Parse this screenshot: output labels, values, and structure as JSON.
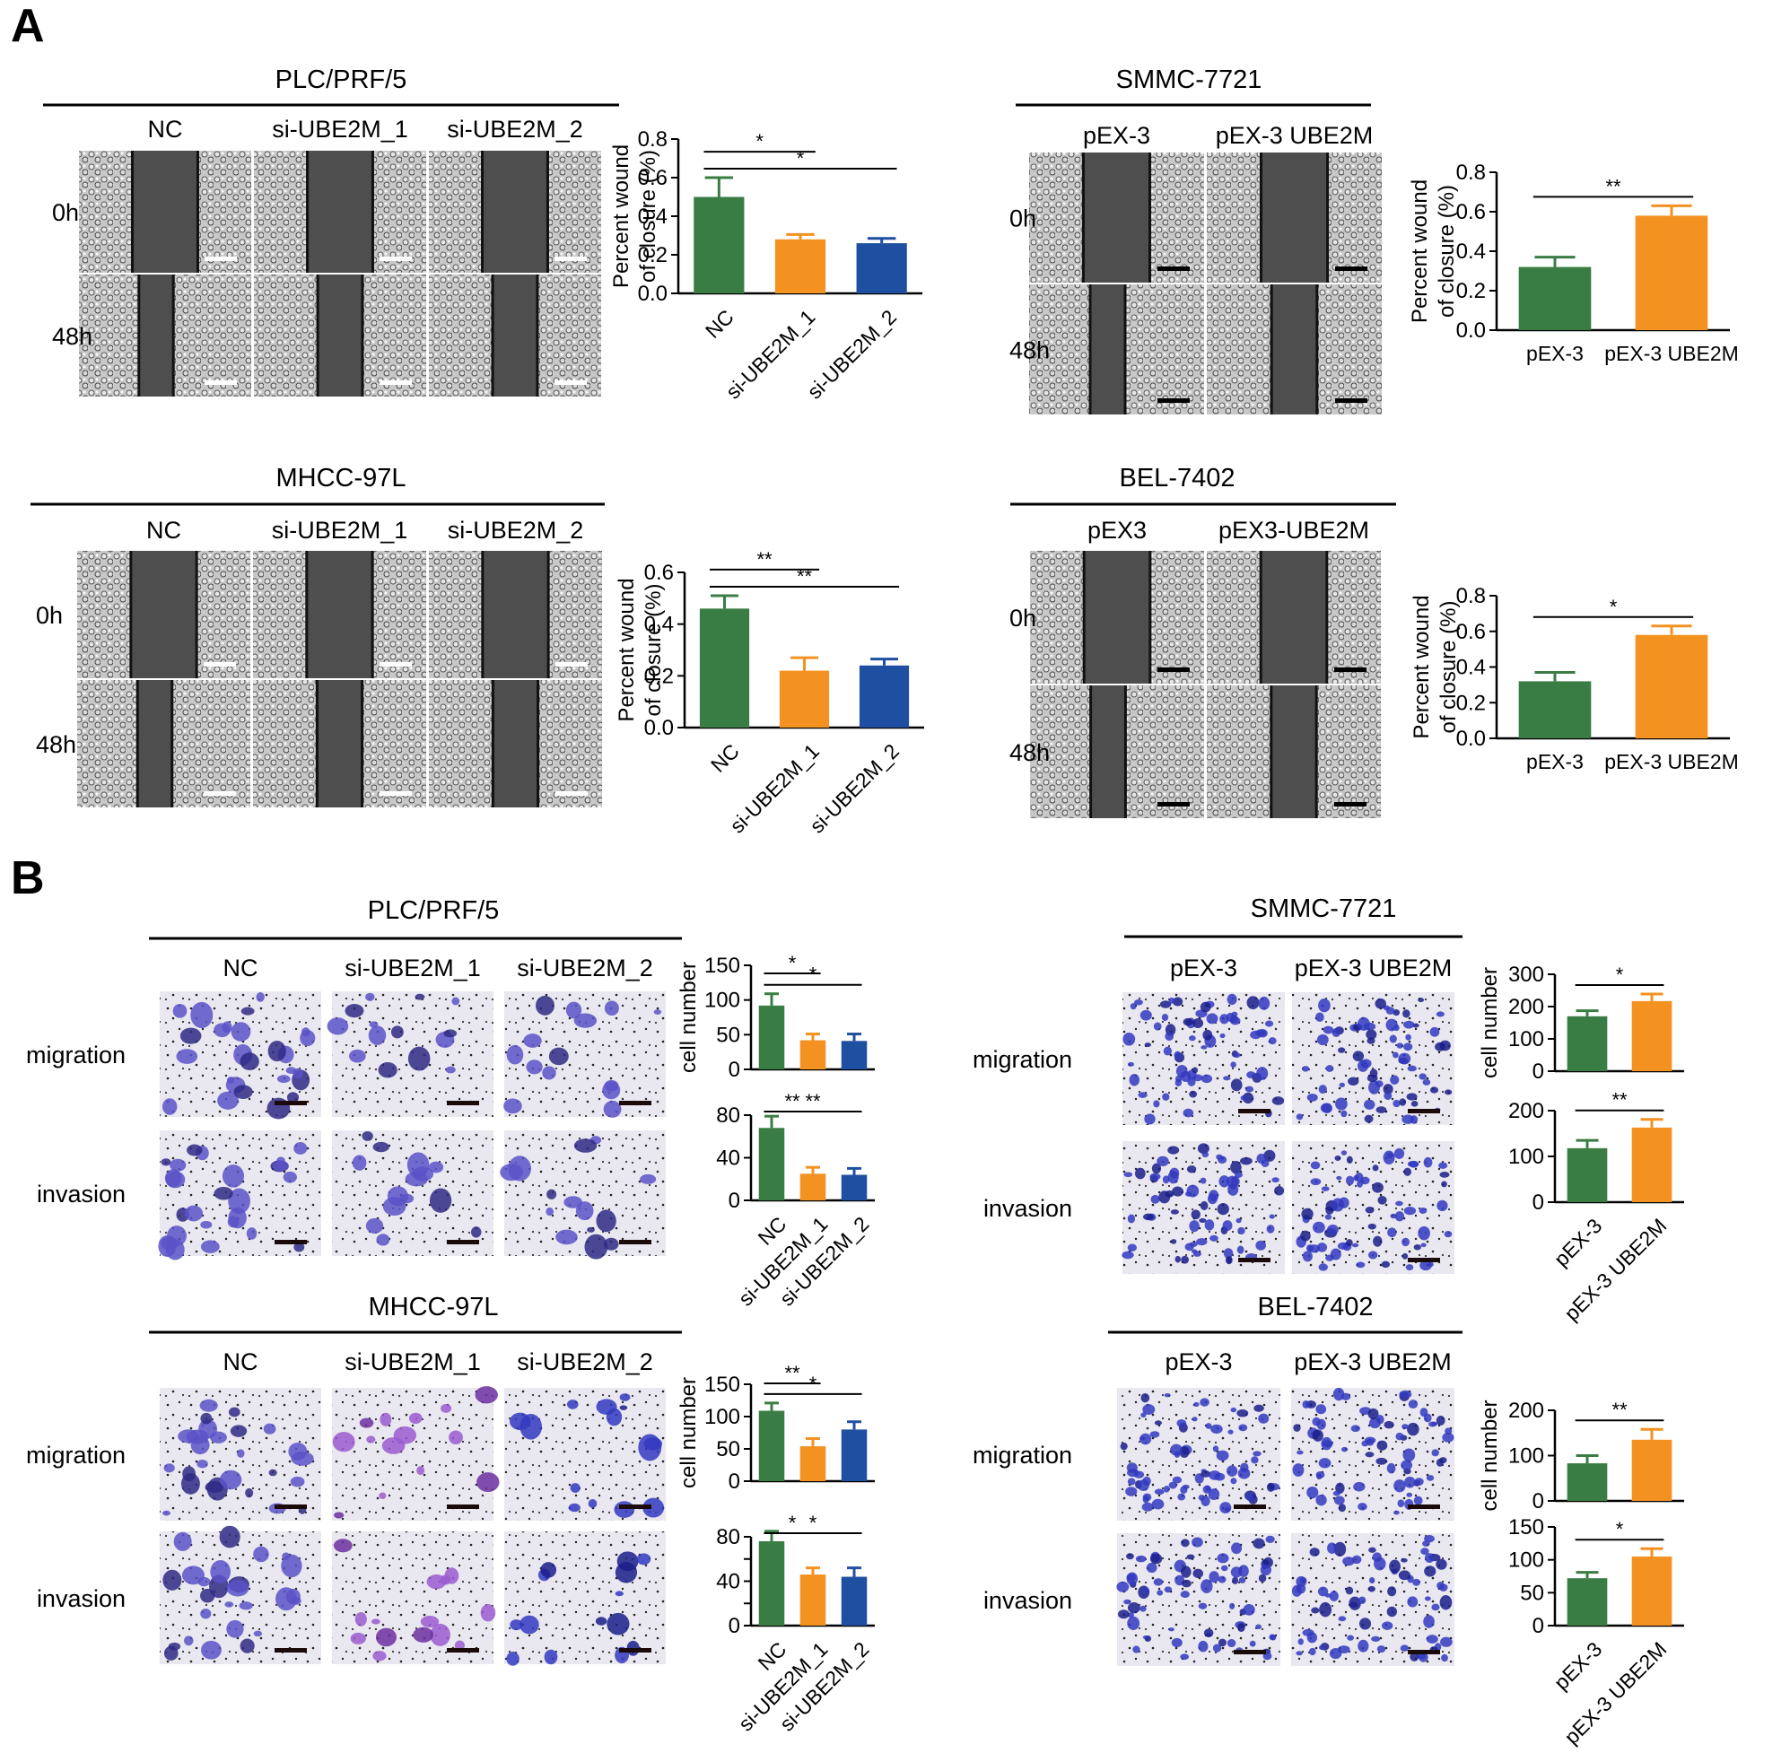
{
  "panel_labels": [
    "A",
    "B"
  ],
  "image_groups": [
    {
      "title": "PLC/PRF/5",
      "columns": [
        "NC",
        "si-UBE2M_1",
        "si-UBE2M_2"
      ],
      "rows": [
        "0h",
        "48h"
      ],
      "style": "wound-scratch"
    },
    {
      "title": "SMMC-7721",
      "columns": [
        "pEX-3",
        "pEX-3 UBE2M"
      ],
      "rows": [
        "0h",
        "48h"
      ],
      "style": "wound-scratch"
    },
    {
      "title": "MHCC-97L",
      "columns": [
        "NC",
        "si-UBE2M_1",
        "si-UBE2M_2"
      ],
      "rows": [
        "0h",
        "48h"
      ],
      "style": "wound-scratch"
    },
    {
      "title": "BEL-7402",
      "columns": [
        "pEX3",
        "pEX3-UBE2M"
      ],
      "rows": [
        "0h",
        "48h"
      ],
      "style": "wound-scratch"
    },
    {
      "title": "PLC/PRF/5",
      "columns": [
        "NC",
        "si-UBE2M_1",
        "si-UBE2M_2"
      ],
      "rows": [
        "migration",
        "invasion"
      ],
      "style": "transwell"
    },
    {
      "title": "SMMC-7721",
      "columns": [
        "pEX-3",
        "pEX-3 UBE2M"
      ],
      "rows": [
        "migration",
        "invasion"
      ],
      "style": "transwell"
    },
    {
      "title": "MHCC-97L",
      "columns": [
        "NC",
        "si-UBE2M_1",
        "si-UBE2M_2"
      ],
      "rows": [
        "migration",
        "invasion"
      ],
      "style": "transwell"
    },
    {
      "title": "BEL-7402",
      "columns": [
        "pEX-3",
        "pEX-3 UBE2M"
      ],
      "rows": [
        "migration",
        "invasion"
      ],
      "style": "transwell"
    }
  ],
  "colors": {
    "nc": "#3a7d44",
    "si1": "#f39220",
    "si2": "#1f4fa0",
    "text": "#000000"
  },
  "chart_data": [
    {
      "type": "bar",
      "ylabel": "Percent wound of closure (%)",
      "categories": [
        "NC",
        "si-UBE2M_1",
        "si-UBE2M_2"
      ],
      "values": [
        0.5,
        0.28,
        0.26
      ],
      "errors": [
        0.1,
        0.025,
        0.025
      ],
      "ylim": [
        0,
        0.8
      ],
      "yticks": [
        "0.0",
        "0.2",
        "0.4",
        "0.6",
        "0.8"
      ],
      "significance": [
        {
          "from": 0,
          "to": 1,
          "label": "*"
        },
        {
          "from": 0,
          "to": 2,
          "label": "*"
        }
      ],
      "show_xlabels": true,
      "rotated_xlabels": true
    },
    {
      "type": "bar",
      "ylabel": "Percent wound of closure (%)",
      "categories": [
        "pEX-3",
        "pEX-3 UBE2M"
      ],
      "values": [
        0.32,
        0.58
      ],
      "errors": [
        0.05,
        0.05
      ],
      "ylim": [
        0,
        0.8
      ],
      "yticks": [
        "0.0",
        "0.2",
        "0.4",
        "0.6",
        "0.8"
      ],
      "significance": [
        {
          "from": 0,
          "to": 1,
          "label": "**"
        }
      ],
      "show_xlabels": true,
      "rotated_xlabels": false
    },
    {
      "type": "bar",
      "ylabel": "Percent wound of closure (%)",
      "categories": [
        "NC",
        "si-UBE2M_1",
        "si-UBE2M_2"
      ],
      "values": [
        0.46,
        0.22,
        0.24
      ],
      "errors": [
        0.05,
        0.05,
        0.025
      ],
      "ylim": [
        0,
        0.6
      ],
      "yticks": [
        "0.0",
        "0.2",
        "0.4",
        "0.6"
      ],
      "significance": [
        {
          "from": 0,
          "to": 1,
          "label": "**"
        },
        {
          "from": 0,
          "to": 2,
          "label": "**"
        }
      ],
      "show_xlabels": true,
      "rotated_xlabels": true
    },
    {
      "type": "bar",
      "ylabel": "Percent wound of closure (%)",
      "categories": [
        "pEX-3",
        "pEX-3 UBE2M"
      ],
      "values": [
        0.32,
        0.58
      ],
      "errors": [
        0.05,
        0.05
      ],
      "ylim": [
        0,
        0.8
      ],
      "yticks": [
        "0.0",
        "0.2",
        "0.4",
        "0.6",
        "0.8"
      ],
      "significance": [
        {
          "from": 0,
          "to": 1,
          "label": "*"
        }
      ],
      "show_xlabels": true,
      "rotated_xlabels": false
    },
    {
      "type": "bar",
      "ylabel": "cell number",
      "categories": [
        "NC",
        "si-UBE2M_1",
        "si-UBE2M_2"
      ],
      "values": [
        92,
        42,
        41
      ],
      "errors": [
        17,
        9,
        10
      ],
      "ylim": [
        0,
        150
      ],
      "yticks": [
        "0",
        "50",
        "100",
        "150"
      ],
      "significance": [
        {
          "from": 0,
          "to": 1,
          "label": "*"
        },
        {
          "from": 0,
          "to": 2,
          "label": "*"
        }
      ],
      "show_xlabels": false,
      "rotated_xlabels": true
    },
    {
      "type": "bar",
      "ylabel": "",
      "categories": [
        "NC",
        "si-UBE2M_1",
        "si-UBE2M_2"
      ],
      "values": [
        68,
        25,
        24
      ],
      "errors": [
        11,
        6,
        6
      ],
      "ylim": [
        0,
        80
      ],
      "yticks": [
        "0",
        "40",
        "80"
      ],
      "significance": [
        {
          "from": 0,
          "to": 1,
          "label": "**"
        },
        {
          "from": 0,
          "to": 2,
          "label": "**"
        }
      ],
      "show_xlabels": true,
      "rotated_xlabels": true
    },
    {
      "type": "bar",
      "ylabel": "cell number",
      "categories": [
        "pEX-3",
        "pEX-3 UBE2M"
      ],
      "values": [
        170,
        217
      ],
      "errors": [
        17,
        22
      ],
      "ylim": [
        0,
        300
      ],
      "yticks": [
        "0",
        "100",
        "200",
        "300"
      ],
      "significance": [
        {
          "from": 0,
          "to": 1,
          "label": "*"
        }
      ],
      "show_xlabels": false,
      "rotated_xlabels": true
    },
    {
      "type": "bar",
      "ylabel": "",
      "categories": [
        "pEX-3",
        "pEX-3 UBE2M"
      ],
      "values": [
        118,
        163
      ],
      "errors": [
        17,
        18
      ],
      "ylim": [
        0,
        200
      ],
      "yticks": [
        "0",
        "100",
        "200"
      ],
      "significance": [
        {
          "from": 0,
          "to": 1,
          "label": "**"
        }
      ],
      "show_xlabels": true,
      "rotated_xlabels": true
    },
    {
      "type": "bar",
      "ylabel": "cell number",
      "categories": [
        "NC",
        "si-UBE2M_1",
        "si-UBE2M_2"
      ],
      "values": [
        109,
        54,
        80
      ],
      "errors": [
        12,
        12,
        12
      ],
      "ylim": [
        0,
        150
      ],
      "yticks": [
        "0",
        "50",
        "100",
        "150"
      ],
      "significance": [
        {
          "from": 0,
          "to": 1,
          "label": "**"
        },
        {
          "from": 0,
          "to": 2,
          "label": "*"
        }
      ],
      "show_xlabels": false,
      "rotated_xlabels": true
    },
    {
      "type": "bar",
      "ylabel": "",
      "categories": [
        "NC",
        "si-UBE2M_1",
        "si-UBE2M_2"
      ],
      "values": [
        76,
        46,
        44
      ],
      "errors": [
        9,
        6,
        8
      ],
      "ylim": [
        0,
        80
      ],
      "yticks": [
        "0",
        "20",
        "40",
        "60",
        "80"
      ],
      "tick_labels_shown": [
        "0",
        "40",
        "80"
      ],
      "significance": [
        {
          "from": 0,
          "to": 1,
          "label": "*"
        },
        {
          "from": 0,
          "to": 2,
          "label": "*"
        }
      ],
      "show_xlabels": true,
      "rotated_xlabels": true
    },
    {
      "type": "bar",
      "ylabel": "cell number",
      "categories": [
        "pEX-3",
        "pEX-3 UBE2M"
      ],
      "values": [
        83,
        135
      ],
      "errors": [
        17,
        23
      ],
      "ylim": [
        0,
        200
      ],
      "yticks": [
        "0",
        "100",
        "200"
      ],
      "significance": [
        {
          "from": 0,
          "to": 1,
          "label": "**"
        }
      ],
      "show_xlabels": false,
      "rotated_xlabels": true
    },
    {
      "type": "bar",
      "ylabel": "",
      "categories": [
        "pEX-3",
        "pEX-3 UBE2M"
      ],
      "values": [
        72,
        105
      ],
      "errors": [
        9,
        12
      ],
      "ylim": [
        0,
        150
      ],
      "yticks": [
        "0",
        "50",
        "100",
        "150"
      ],
      "significance": [
        {
          "from": 0,
          "to": 1,
          "label": "*"
        }
      ],
      "show_xlabels": true,
      "rotated_xlabels": true
    }
  ]
}
